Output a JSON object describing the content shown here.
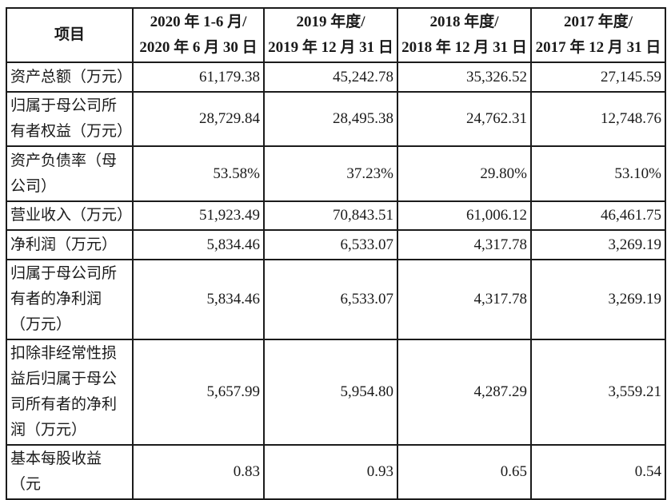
{
  "document": {
    "background_color": "#ffffff",
    "border_color": "#1b1b1b",
    "text_color": "#1a1a1a"
  },
  "table": {
    "header": {
      "item": "项目",
      "periods": [
        {
          "line1": "2020 年 1-6 月/",
          "line2": "2020 年 6 月 30 日"
        },
        {
          "line1": "2019 年度/",
          "line2": "2019 年 12 月 31 日"
        },
        {
          "line1": "2018 年度/",
          "line2": "2018 年 12 月 31 日"
        },
        {
          "line1": "2017 年度/",
          "line2": "2017 年 12 月 31 日"
        }
      ]
    },
    "rows": [
      {
        "label": "资产总额（万元）",
        "values": [
          "61,179.38",
          "45,242.78",
          "35,326.52",
          "27,145.59"
        ]
      },
      {
        "label": "归属于母公司所有者权益（万元）",
        "values": [
          "28,729.84",
          "28,495.38",
          "24,762.31",
          "12,748.76"
        ]
      },
      {
        "label": "资产负债率（母公司）",
        "values": [
          "53.58%",
          "37.23%",
          "29.80%",
          "53.10%"
        ]
      },
      {
        "label": "营业收入（万元）",
        "values": [
          "51,923.49",
          "70,843.51",
          "61,006.12",
          "46,461.75"
        ]
      },
      {
        "label": "净利润（万元）",
        "values": [
          "5,834.46",
          "6,533.07",
          "4,317.78",
          "3,269.19"
        ]
      },
      {
        "label": "归属于母公司所有者的净利润（万元）",
        "values": [
          "5,834.46",
          "6,533.07",
          "4,317.78",
          "3,269.19"
        ]
      },
      {
        "label": "扣除非经常性损益后归属于母公司所有者的净利润（万元）",
        "values": [
          "5,657.99",
          "5,954.80",
          "4,287.29",
          "3,559.21"
        ]
      },
      {
        "label": "基本每股收益（元",
        "values": [
          "0.83",
          "0.93",
          "0.65",
          "0.54"
        ]
      }
    ]
  }
}
